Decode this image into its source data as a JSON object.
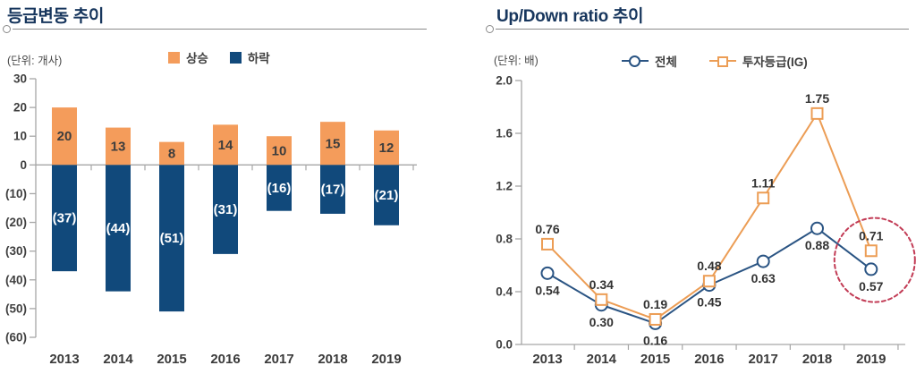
{
  "colors": {
    "axis_gray": "#A6A6A6",
    "divider_gray": "#8A8A8A",
    "title_navy": "#17365D",
    "text_dark": "#404040",
    "annotation_red": "#C23B55"
  },
  "chart_data": [
    {
      "type": "bar",
      "title": "등급변동 추이",
      "unit_label": "(단위: 개사)",
      "categories": [
        "2013",
        "2014",
        "2015",
        "2016",
        "2017",
        "2018",
        "2019"
      ],
      "series": [
        {
          "name": "상승",
          "color": "#F49C5B",
          "label_color": "#3D3D3D",
          "values": [
            20,
            13,
            8,
            14,
            10,
            15,
            12
          ],
          "labels": [
            "20",
            "13",
            "8",
            "14",
            "10",
            "15",
            "12"
          ]
        },
        {
          "name": "하락",
          "color": "#11497B",
          "label_color": "#FFFFFF",
          "values": [
            -37,
            -44,
            -51,
            -31,
            -16,
            -17,
            -21
          ],
          "labels": [
            "(37)",
            "(44)",
            "(51)",
            "(31)",
            "(16)",
            "(17)",
            "(21)"
          ]
        }
      ],
      "ylim": [
        -60,
        30
      ],
      "ytick_values": [
        30,
        20,
        10,
        0,
        -10,
        -20,
        -30,
        -40,
        -50,
        -60
      ],
      "ytick_labels": [
        "30",
        "20",
        "10",
        "0",
        "(10)",
        "(20)",
        "(30)",
        "(40)",
        "(50)",
        "(60)"
      ],
      "grid": false,
      "legend_position": "top-center"
    },
    {
      "type": "line",
      "title": "Up/Down ratio 추이",
      "unit_label": "(단위: 배)",
      "categories": [
        "2013",
        "2014",
        "2015",
        "2016",
        "2017",
        "2018",
        "2019"
      ],
      "series": [
        {
          "name": "전체",
          "color": "#2A5483",
          "marker": "circle",
          "label_side": "below",
          "values": [
            0.54,
            0.3,
            0.16,
            0.45,
            0.63,
            0.88,
            0.57
          ],
          "labels": [
            "0.54",
            "0.30",
            "0.16",
            "0.45",
            "0.63",
            "0.88",
            "0.57"
          ]
        },
        {
          "name": "투자등급(IG)",
          "color": "#EC9D55",
          "marker": "square",
          "label_side": "above",
          "values": [
            0.76,
            0.34,
            0.19,
            0.48,
            1.11,
            1.75,
            0.71
          ],
          "labels": [
            "0.76",
            "0.34",
            "0.19",
            "0.48",
            "1.11",
            "1.75",
            "0.71"
          ]
        }
      ],
      "ylim": [
        0,
        2.0
      ],
      "ytick_values": [
        2.0,
        1.6,
        1.2,
        0.8,
        0.4,
        0.0
      ],
      "ytick_labels": [
        "2.0",
        "1.6",
        "1.2",
        "0.8",
        "0.4",
        "0.0"
      ],
      "grid": false,
      "legend_position": "top-center",
      "annotation": {
        "type": "dashed-ellipse",
        "category": "2019",
        "color": "#C23B55"
      }
    }
  ]
}
